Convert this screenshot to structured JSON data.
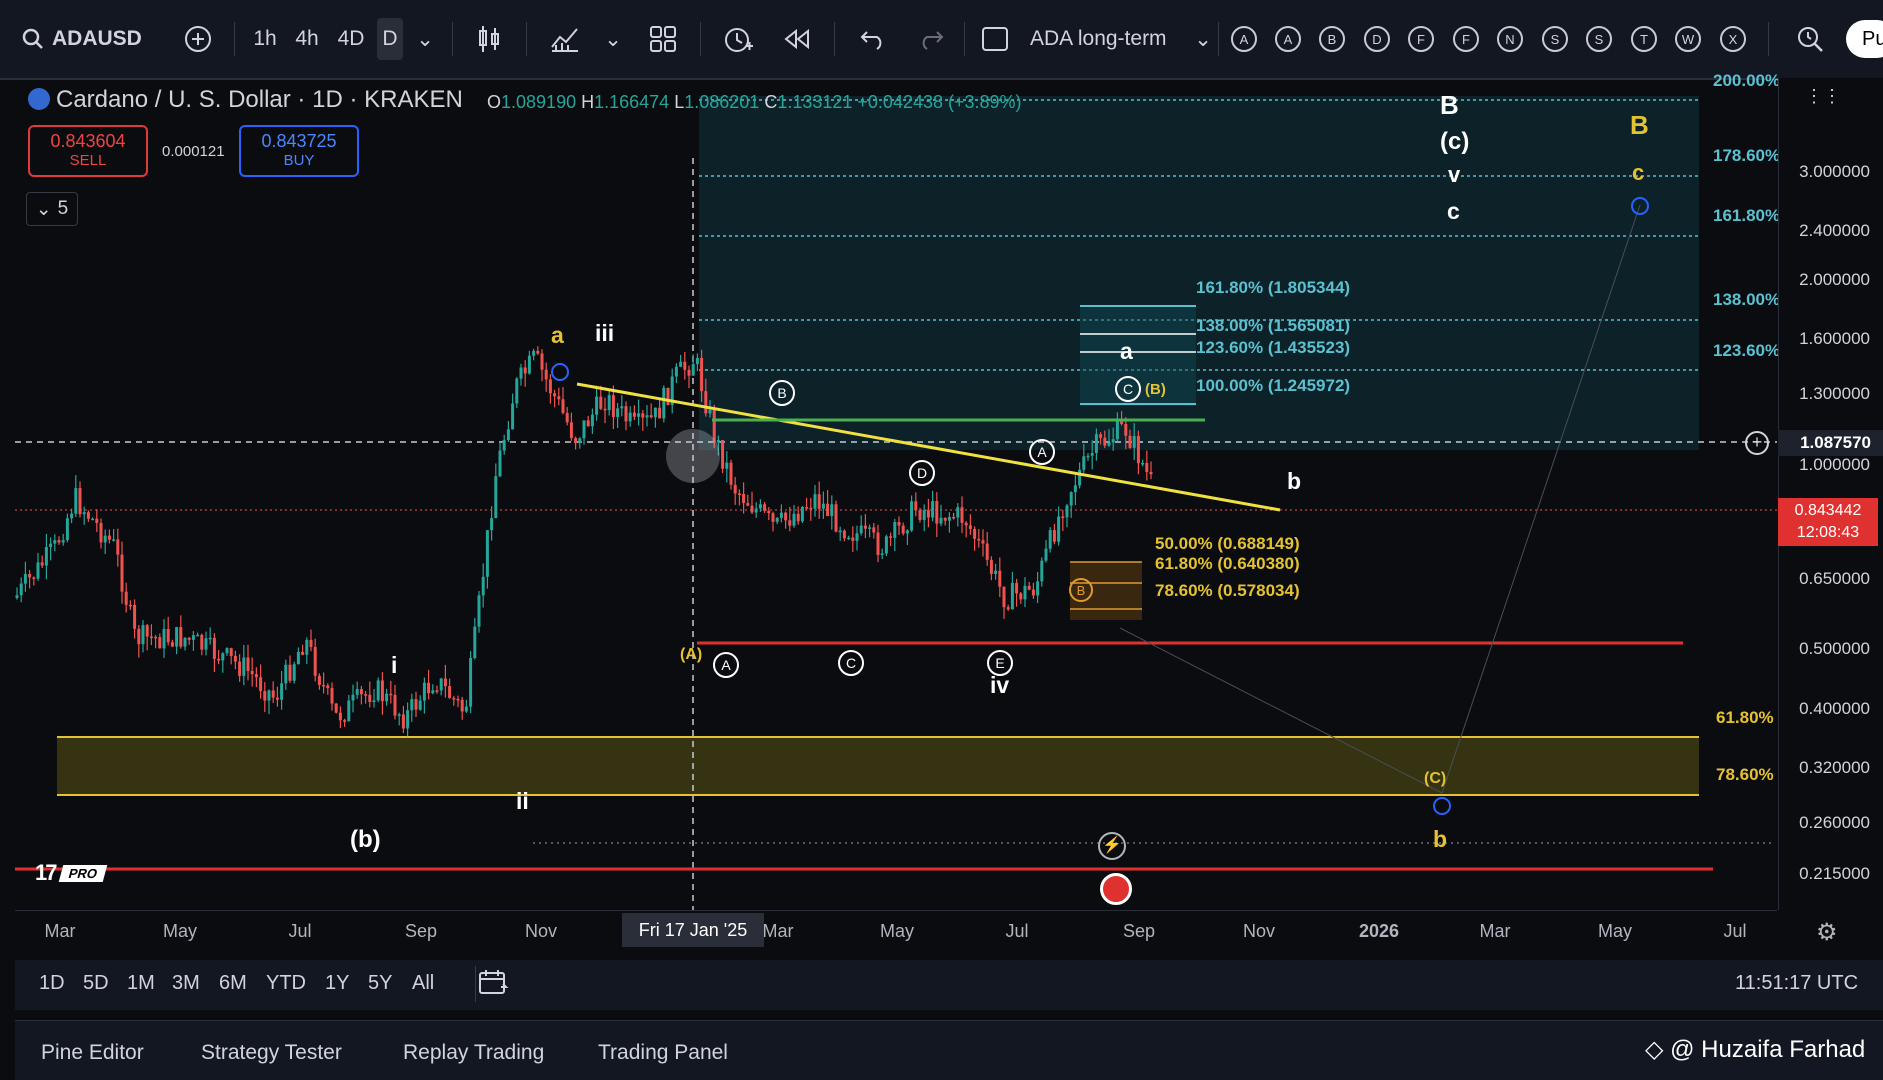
{
  "toolbar": {
    "symbol": "ADAUSD",
    "intervals": [
      "1h",
      "4h",
      "4D",
      "D"
    ],
    "layout_name": "ADA long-term",
    "alert_letters": [
      "A",
      "A",
      "B",
      "D",
      "F",
      "F",
      "N",
      "S",
      "S",
      "T",
      "W",
      "X"
    ],
    "publish_label": "Pu"
  },
  "legend": {
    "title": "Cardano / U. S. Dollar · 1D · KRAKEN",
    "open_label": "O",
    "open": "1.089190",
    "high_label": "H",
    "high": "1.166474",
    "low_label": "L",
    "low": "1.086201",
    "close_label": "C",
    "close": "1.133121",
    "change": "+0.042438 (+3.89%)"
  },
  "trade": {
    "sell_price": "0.843604",
    "sell_label": "SELL",
    "buy_price": "0.843725",
    "buy_label": "BUY",
    "spread": "0.000121",
    "indicator_count": "5"
  },
  "price_scale": [
    "3.000000",
    "2.400000",
    "2.000000",
    "1.600000",
    "1.300000",
    "1.000000",
    "0.650000",
    "0.500000",
    "0.400000",
    "0.320000",
    "0.260000",
    "0.215000"
  ],
  "crosshair_price": "1.087570",
  "current_price": "0.843442",
  "countdown": "12:08:43",
  "fib_right": [
    "200.00%",
    "178.60%",
    "161.80%",
    "138.00%",
    "123.60%"
  ],
  "fib_right_yellow": [
    "61.80%",
    "78.60%"
  ],
  "fib_labels": {
    "f1618": "161.80% (1.805344)",
    "f138": "138.00% (1.565081)",
    "f1236": "123.60% (1.435523)",
    "f100": "100.00% (1.245972)",
    "f50": "50.00% (0.688149)",
    "f618": "61.80% (0.640380)",
    "f786": "78.60% (0.578034)"
  },
  "wave_labels": {
    "a_top": "a",
    "iii": "iii",
    "i": "i",
    "ii": "ii",
    "b_paren": "(b)",
    "B_circ": "B",
    "A_circ": "A",
    "C_circ": "C",
    "D_circ": "D",
    "E_circ": "E",
    "A_circ2": "A",
    "A_paren": "(A)",
    "iv": "iv",
    "b_small": "b",
    "a_small": "a",
    "C_circ2": "C",
    "B_paren": "(B)",
    "B_circ2": "B",
    "B_big": "B",
    "c_paren": "(c)",
    "v": "v",
    "c": "c",
    "B_yellow": "B",
    "c_yellow": "c",
    "C_paren_y": "(C)",
    "b_yellow": "b"
  },
  "time_axis": [
    "Mar",
    "May",
    "Jul",
    "Sep",
    "Nov",
    "Mar",
    "May",
    "Jul",
    "Sep",
    "Nov",
    "2026",
    "Mar",
    "May",
    "Jul"
  ],
  "crosshair_date": "Fri 17 Jan '25",
  "ranges": [
    "1D",
    "5D",
    "1M",
    "3M",
    "6M",
    "YTD",
    "1Y",
    "5Y",
    "All"
  ],
  "clock": "11:51:17 UTC",
  "panels": [
    "Pine Editor",
    "Strategy Tester",
    "Replay Trading",
    "Trading Panel"
  ],
  "watermark": "@ Huzaifa Farhad",
  "logo_badge": "PRO",
  "colors": {
    "bg": "#0b0c10",
    "up": "#26a69a",
    "down": "#ef5350",
    "fib_teal": "#5bc0d0",
    "yellow": "#e5c233",
    "red_line": "#e03131"
  }
}
